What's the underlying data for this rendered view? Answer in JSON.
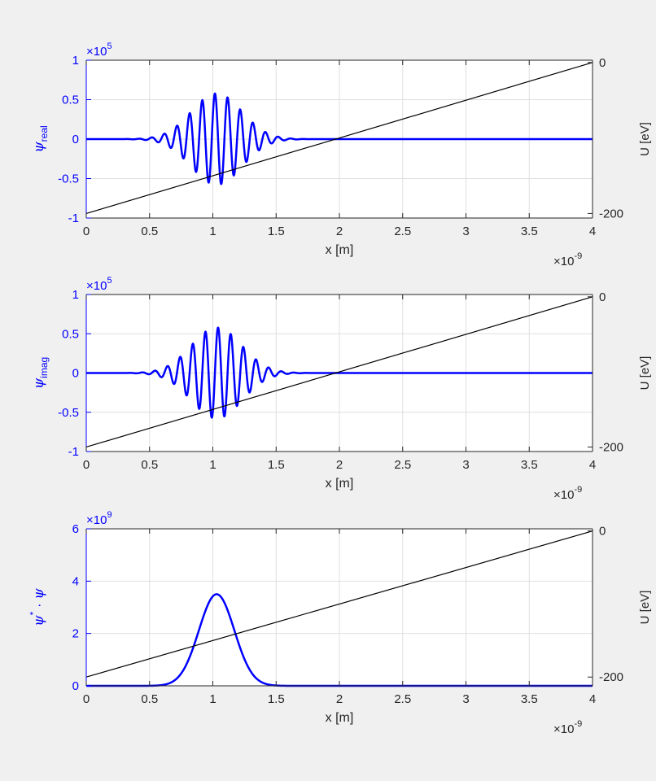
{
  "figure": {
    "background": "#f0f0f0",
    "axes_background": "#ffffff",
    "left_axis_color": "#0000ff",
    "right_axis_color": "#262626",
    "grid_color": "#dfdfdf"
  },
  "chart_data": [
    {
      "type": "line",
      "xlabel": "x  [m]",
      "x_exponent_base": "×10",
      "x_exponent_power": "-9",
      "xlim": [
        0,
        4
      ],
      "xticks": [
        0,
        0.5,
        1,
        1.5,
        2,
        2.5,
        3,
        3.5,
        4
      ],
      "xtick_labels": [
        "0",
        "0.5",
        "1",
        "1.5",
        "2",
        "2.5",
        "3",
        "3.5",
        "4"
      ],
      "ylabel_symbol": "ψ",
      "ylabel_sub": "real",
      "ylabel_sup": "",
      "ylabel_tail": "",
      "y_exponent_base": "×10",
      "y_exponent_power": "5",
      "ylim": [
        -1,
        1
      ],
      "yticks": [
        -1,
        -0.5,
        0,
        0.5,
        1
      ],
      "ytick_labels": [
        "-1",
        "-0.5",
        "0",
        "0.5",
        "1"
      ],
      "y2label": "U  [eV]",
      "y2lim": [
        -206,
        3
      ],
      "y2ticks": [
        -200,
        0
      ],
      "y2tick_labels": [
        "-200",
        "0"
      ],
      "grid": true,
      "series": [
        {
          "axis": "left",
          "kind": "wavepacket",
          "color": "#0000ff",
          "envelope_amplitude": 0.58,
          "center": 1.03,
          "width": 0.2,
          "wavelength": 0.1,
          "phase": 0.85
        },
        {
          "axis": "right",
          "kind": "linear",
          "color": "#000000",
          "x": [
            0,
            4
          ],
          "y": [
            -200,
            0
          ]
        }
      ]
    },
    {
      "type": "line",
      "xlabel": "x  [m]",
      "x_exponent_base": "×10",
      "x_exponent_power": "-9",
      "xlim": [
        0,
        4
      ],
      "xticks": [
        0,
        0.5,
        1,
        1.5,
        2,
        2.5,
        3,
        3.5,
        4
      ],
      "xtick_labels": [
        "0",
        "0.5",
        "1",
        "1.5",
        "2",
        "2.5",
        "3",
        "3.5",
        "4"
      ],
      "ylabel_symbol": "ψ",
      "ylabel_sub": "imag",
      "ylabel_sup": "",
      "ylabel_tail": "",
      "y_exponent_base": "×10",
      "y_exponent_power": "5",
      "ylim": [
        -1,
        1
      ],
      "yticks": [
        -1,
        -0.5,
        0,
        0.5,
        1
      ],
      "ytick_labels": [
        "-1",
        "-0.5",
        "0",
        "0.5",
        "1"
      ],
      "y2label": "U  [eV]",
      "y2lim": [
        -206,
        3
      ],
      "y2ticks": [
        -200,
        0
      ],
      "y2tick_labels": [
        "-200",
        "0"
      ],
      "grid": true,
      "series": [
        {
          "axis": "left",
          "kind": "wavepacket",
          "color": "#0000ff",
          "envelope_amplitude": 0.58,
          "center": 1.03,
          "width": 0.2,
          "wavelength": 0.1,
          "phase": -0.72
        },
        {
          "axis": "right",
          "kind": "linear",
          "color": "#000000",
          "x": [
            0,
            4
          ],
          "y": [
            -200,
            0
          ]
        }
      ]
    },
    {
      "type": "line",
      "xlabel": "x  [m]",
      "x_exponent_base": "×10",
      "x_exponent_power": "-9",
      "xlim": [
        0,
        4
      ],
      "xticks": [
        0,
        0.5,
        1,
        1.5,
        2,
        2.5,
        3,
        3.5,
        4
      ],
      "xtick_labels": [
        "0",
        "0.5",
        "1",
        "1.5",
        "2",
        "2.5",
        "3",
        "3.5",
        "4"
      ],
      "ylabel_symbol": "ψ",
      "ylabel_sub": "",
      "ylabel_sup": "*",
      "ylabel_tail": " · ψ",
      "y_exponent_base": "×10",
      "y_exponent_power": "9",
      "ylim": [
        0,
        6
      ],
      "yticks": [
        0,
        2,
        4,
        6
      ],
      "ytick_labels": [
        "0",
        "2",
        "4",
        "6"
      ],
      "y2label": "U  [eV]",
      "y2lim": [
        -212,
        3
      ],
      "y2ticks": [
        -200,
        0
      ],
      "y2tick_labels": [
        "-200",
        "0"
      ],
      "grid": true,
      "series": [
        {
          "axis": "left",
          "kind": "gaussian",
          "color": "#0000ff",
          "peak": 3.5,
          "center": 1.03,
          "width": 0.14
        },
        {
          "axis": "right",
          "kind": "linear",
          "color": "#000000",
          "x": [
            0,
            4
          ],
          "y": [
            -200,
            0
          ]
        }
      ]
    }
  ]
}
